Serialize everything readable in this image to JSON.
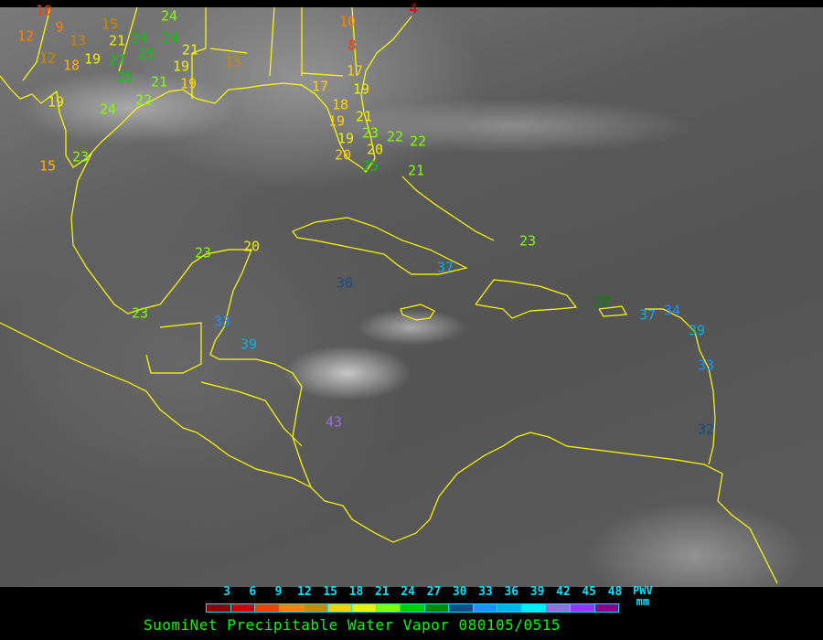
{
  "legend": {
    "ticks": [
      "3",
      "6",
      "9",
      "12",
      "15",
      "18",
      "21",
      "24",
      "27",
      "30",
      "33",
      "36",
      "39",
      "42",
      "45",
      "48"
    ],
    "colors": [
      "#8b0000",
      "#d00000",
      "#f04000",
      "#ff8000",
      "#cc8800",
      "#ffd000",
      "#f0f000",
      "#80ff00",
      "#00cc00",
      "#008800",
      "#104e8b",
      "#1e90ff",
      "#00b2ee",
      "#00eeee",
      "#9370db",
      "#9b30ff",
      "#8b008b"
    ],
    "quantity": "PWV",
    "unit": "mm"
  },
  "title": "SuomiNet Precipitable Water Vapor 080105/0515",
  "coastline_color": "#ffff00",
  "stations": [
    {
      "value": "10",
      "color": "#f04000"
    },
    {
      "value": "12",
      "color": "#ff8000"
    },
    {
      "value": "9",
      "color": "#ff8000"
    },
    {
      "value": "13",
      "color": "#cc8800"
    },
    {
      "value": "12",
      "color": "#cc8800"
    },
    {
      "value": "18",
      "color": "#ffb000"
    },
    {
      "value": "19",
      "color": "#f0f000"
    },
    {
      "value": "27",
      "color": "#00cc00"
    },
    {
      "value": "25",
      "color": "#00cc00"
    },
    {
      "value": "15",
      "color": "#cc8800"
    },
    {
      "value": "21",
      "color": "#f0f000"
    },
    {
      "value": "24",
      "color": "#00cc00"
    },
    {
      "value": "25",
      "color": "#00cc00"
    },
    {
      "value": "24",
      "color": "#80ff00"
    },
    {
      "value": "24",
      "color": "#00cc00"
    },
    {
      "value": "21",
      "color": "#f0f000"
    },
    {
      "value": "19",
      "color": "#f0f000"
    },
    {
      "value": "21",
      "color": "#80ff00"
    },
    {
      "value": "19",
      "color": "#ffd000"
    },
    {
      "value": "15",
      "color": "#cc8800"
    },
    {
      "value": "22",
      "color": "#80ff00"
    },
    {
      "value": "24",
      "color": "#80ff00"
    },
    {
      "value": "19",
      "color": "#f0f000"
    },
    {
      "value": "23",
      "color": "#80ff00"
    },
    {
      "value": "15",
      "color": "#ffb000"
    },
    {
      "value": "10",
      "color": "#ff8000"
    },
    {
      "value": "8",
      "color": "#f04000"
    },
    {
      "value": "4",
      "color": "#d00000"
    },
    {
      "value": "17",
      "color": "#ffd000"
    },
    {
      "value": "17",
      "color": "#ffd000"
    },
    {
      "value": "19",
      "color": "#f0f000"
    },
    {
      "value": "18",
      "color": "#ffd000"
    },
    {
      "value": "21",
      "color": "#f0f000"
    },
    {
      "value": "19",
      "color": "#ffd000"
    },
    {
      "value": "23",
      "color": "#80ff00"
    },
    {
      "value": "22",
      "color": "#80ff00"
    },
    {
      "value": "19",
      "color": "#f0f000"
    },
    {
      "value": "20",
      "color": "#f0f000"
    },
    {
      "value": "20",
      "color": "#ffd000"
    },
    {
      "value": "25",
      "color": "#00cc00"
    },
    {
      "value": "22",
      "color": "#80ff00"
    },
    {
      "value": "21",
      "color": "#80ff00"
    },
    {
      "value": "23",
      "color": "#80ff00"
    },
    {
      "value": "20",
      "color": "#f0f000"
    },
    {
      "value": "23",
      "color": "#80ff00"
    },
    {
      "value": "33",
      "color": "#1e90ff"
    },
    {
      "value": "39",
      "color": "#00b2ee"
    },
    {
      "value": "30",
      "color": "#104e8b"
    },
    {
      "value": "37",
      "color": "#00b2ee"
    },
    {
      "value": "43",
      "color": "#9370db"
    },
    {
      "value": "23",
      "color": "#80ff00"
    },
    {
      "value": "28",
      "color": "#008800"
    },
    {
      "value": "37",
      "color": "#00b2ee"
    },
    {
      "value": "34",
      "color": "#1e90ff"
    },
    {
      "value": "39",
      "color": "#00b2ee"
    },
    {
      "value": "33",
      "color": "#1e90ff"
    },
    {
      "value": "32",
      "color": "#104e8b"
    }
  ]
}
